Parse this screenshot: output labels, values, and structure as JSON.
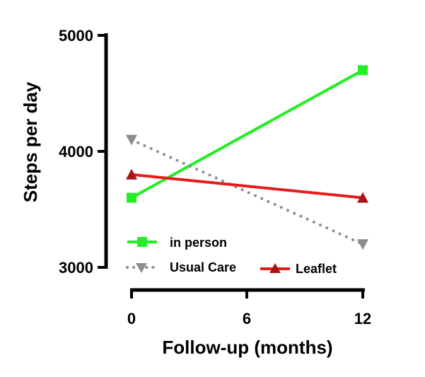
{
  "chart_data": {
    "type": "line",
    "title": "",
    "xlabel": "Follow-up (months)",
    "ylabel": "Steps per day",
    "x": [
      0,
      12
    ],
    "xticks": [
      "0",
      "6",
      "12"
    ],
    "yticks": [
      "3000",
      "4000",
      "5000"
    ],
    "xlim": [
      0,
      12
    ],
    "ylim": [
      3000,
      5000
    ],
    "grid": false,
    "legend_position": "bottom-left",
    "series": [
      {
        "name": "in person",
        "values": [
          3600,
          4700
        ],
        "color": "#22ee22",
        "marker": "square",
        "dash": "solid"
      },
      {
        "name": "Usual Care",
        "values": [
          4100,
          3200
        ],
        "color": "#8c8c8c",
        "marker": "triangle-down",
        "dash": "dotted"
      },
      {
        "name": "Leaflet",
        "values": [
          3800,
          3600
        ],
        "color": "#e61c1c",
        "marker": "triangle-up",
        "dash": "solid"
      }
    ]
  }
}
